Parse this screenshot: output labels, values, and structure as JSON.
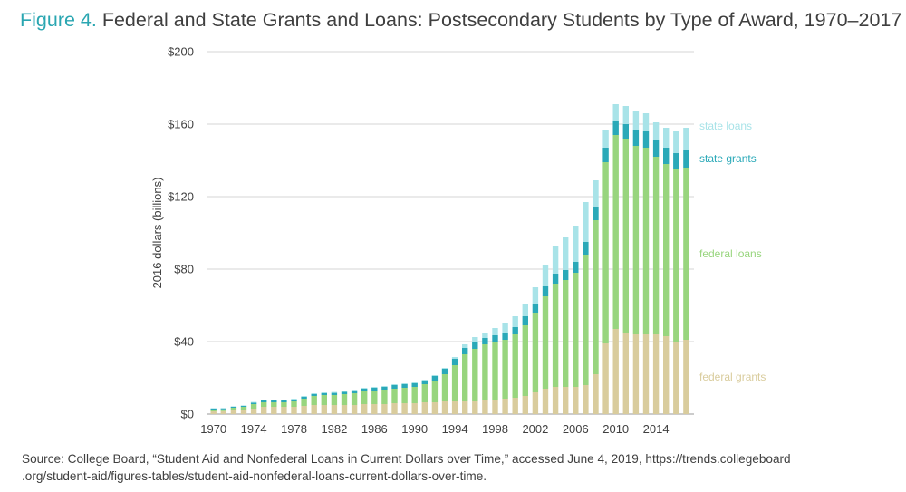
{
  "figure": {
    "label": "Figure 4.",
    "title": "Federal and State Grants and Loans: Postsecondary Students by Type of Award, 1970–2017"
  },
  "source": {
    "line1": "Source: College Board, “Student Aid and Nonfederal Loans in Current Dollars over Time,” accessed June 4, 2019, https://trends.collegeboard",
    "line2": ".org/student-aid/figures-tables/student-aid-nonfederal-loans-current-dollars-over-time."
  },
  "colors": {
    "federal_grants": "#d9cc9d",
    "federal_loans": "#98d57e",
    "state_grants": "#2aa9b8",
    "state_loans": "#a8e3e8",
    "grid": "#d6d6d6",
    "text": "#3f3f3f"
  },
  "chart_data": {
    "type": "bar",
    "stacked": true,
    "ylabel": "2016 dollars (billions)",
    "ylim": [
      0,
      200
    ],
    "yticks": [
      0,
      40,
      80,
      120,
      160,
      200
    ],
    "ytick_labels": [
      "$0",
      "$40",
      "$80",
      "$120",
      "$160",
      "$200"
    ],
    "xtick_labels": [
      "1970",
      "1974",
      "1978",
      "1982",
      "1986",
      "1990",
      "1994",
      "1998",
      "2002",
      "2006",
      "2010",
      "2014"
    ],
    "grid": "horizontal",
    "legend": "right",
    "categories": [
      "1970",
      "1971",
      "1972",
      "1973",
      "1974",
      "1975",
      "1976",
      "1977",
      "1978",
      "1979",
      "1980",
      "1981",
      "1982",
      "1983",
      "1984",
      "1985",
      "1986",
      "1987",
      "1988",
      "1989",
      "1990",
      "1991",
      "1992",
      "1993",
      "1994",
      "1995",
      "1996",
      "1997",
      "1998",
      "1999",
      "2000",
      "2001",
      "2002",
      "2003",
      "2004",
      "2005",
      "2006",
      "2007",
      "2008",
      "2009",
      "2010",
      "2011",
      "2012",
      "2013",
      "2014",
      "2015",
      "2016",
      "2017"
    ],
    "series": [
      {
        "name": "federal grants",
        "color_key": "federal_grants",
        "values": [
          1.5,
          1.6,
          2,
          2.5,
          3,
          4,
          4,
          4,
          4,
          4.5,
          5,
          5,
          5,
          5,
          5,
          5.5,
          5.5,
          5.5,
          6,
          6,
          6,
          6.5,
          6.5,
          7,
          7,
          7,
          7,
          7.5,
          8,
          8.5,
          9,
          10,
          12,
          14,
          15,
          15,
          15,
          16,
          22,
          39,
          47,
          45,
          44,
          44,
          44,
          43,
          40,
          41
        ]
      },
      {
        "name": "federal loans",
        "color_key": "federal_loans",
        "values": [
          1,
          1,
          1.5,
          1.5,
          2.5,
          2.5,
          2.5,
          2.5,
          3,
          4,
          5,
          5.5,
          5.5,
          6,
          6.5,
          7,
          7.5,
          8,
          8,
          8.5,
          9,
          10,
          12,
          15,
          20,
          26,
          29,
          31,
          31.5,
          32.5,
          35,
          39,
          44,
          51,
          57,
          59,
          63,
          72,
          85,
          100,
          107,
          107,
          104,
          103,
          98,
          95,
          95,
          95
        ]
      },
      {
        "name": "state grants",
        "color_key": "state_grants",
        "values": [
          0.5,
          0.5,
          0.5,
          0.5,
          0.8,
          1,
          1,
          1,
          1,
          1,
          1,
          1,
          1.2,
          1.3,
          1.5,
          1.5,
          1.5,
          1.5,
          2,
          2,
          2,
          2,
          2.5,
          3,
          3.5,
          3.5,
          3.5,
          3.5,
          4,
          4,
          4,
          5,
          5,
          5.5,
          5.5,
          5.5,
          6,
          7,
          7,
          8,
          8,
          8,
          9,
          9,
          9,
          9,
          9,
          10
        ]
      },
      {
        "name": "state loans",
        "color_key": "state_loans",
        "values": [
          0.3,
          0.3,
          0.3,
          0.3,
          0.4,
          0.5,
          0.5,
          0.5,
          0.5,
          0.5,
          0.5,
          0.5,
          0.5,
          0.5,
          0.5,
          0.5,
          0.5,
          0.5,
          0.5,
          0.5,
          0.5,
          0.5,
          0.5,
          0.5,
          1,
          2,
          3,
          3,
          4,
          5,
          6,
          7,
          9,
          12,
          15,
          18,
          20,
          22,
          15,
          10,
          9,
          10,
          10,
          10,
          10,
          11,
          12,
          12
        ]
      }
    ]
  }
}
